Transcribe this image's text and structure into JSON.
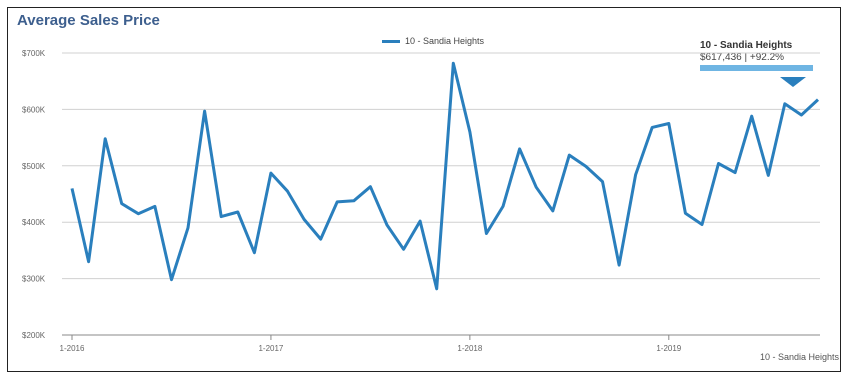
{
  "chart_data": {
    "type": "line",
    "title": "Average Sales Price",
    "x_tick_labels": [
      "1-2016",
      "1-2017",
      "1-2018",
      "1-2019"
    ],
    "y_tick_labels": [
      "$700K",
      "$600K",
      "$500K",
      "$400K",
      "$300K",
      "$200K"
    ],
    "ylim": [
      200000,
      700000
    ],
    "grid": true,
    "legend_position": "top-center",
    "series": [
      {
        "name": "10 - Sandia Heights",
        "color": "#2a7fbd",
        "values": [
          460000,
          330000,
          548000,
          433000,
          415000,
          428000,
          298000,
          390000,
          597000,
          410000,
          418000,
          346000,
          487000,
          455000,
          405000,
          370000,
          436000,
          438000,
          463000,
          395000,
          352000,
          402000,
          282000,
          682000,
          560000,
          380000,
          428000,
          530000,
          462000,
          420000,
          519000,
          499000,
          472000,
          324000,
          484000,
          568000,
          575000,
          416000,
          396000,
          504000,
          488000,
          588000,
          483000,
          610000,
          590000,
          617436
        ]
      }
    ],
    "callout": {
      "series": "10 - Sandia Heights",
      "text": "$617,436 | +92.2%"
    },
    "footer_label": "10 - Sandia Heights"
  }
}
